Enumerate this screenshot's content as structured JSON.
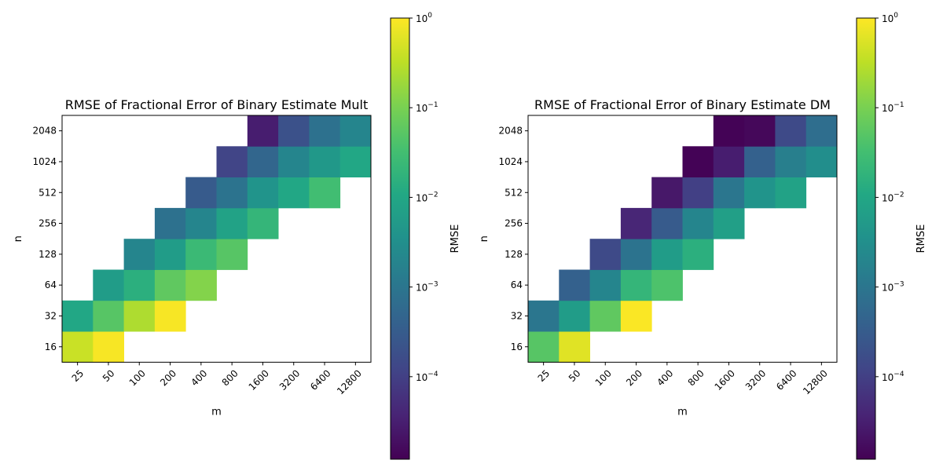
{
  "chart_data": [
    {
      "type": "heatmap",
      "title": "RMSE of Fractional Error of Binary Estimate Mult",
      "xlabel": "m",
      "ylabel": "n",
      "x_categories": [
        "25",
        "50",
        "100",
        "200",
        "400",
        "800",
        "1600",
        "3200",
        "6400",
        "12800"
      ],
      "y_categories": [
        "16",
        "32",
        "64",
        "128",
        "256",
        "512",
        "1024",
        "2048"
      ],
      "values": [
        [
          0.4,
          0.9,
          null,
          null,
          null,
          null,
          null,
          null,
          null,
          null
        ],
        [
          0.01,
          0.05,
          0.25,
          0.9,
          null,
          null,
          null,
          null,
          null,
          null
        ],
        [
          null,
          0.006,
          0.015,
          0.06,
          0.12,
          null,
          null,
          null,
          null,
          null
        ],
        [
          null,
          null,
          0.002,
          0.006,
          0.025,
          0.05,
          null,
          null,
          null,
          null
        ],
        [
          null,
          null,
          null,
          0.0008,
          0.002,
          0.008,
          0.02,
          null,
          null,
          null
        ],
        [
          null,
          null,
          null,
          null,
          0.0003,
          0.0009,
          0.004,
          0.01,
          0.03,
          null
        ],
        [
          null,
          null,
          null,
          null,
          null,
          0.00012,
          0.0005,
          0.002,
          0.005,
          0.01
        ],
        [
          null,
          null,
          null,
          null,
          null,
          null,
          3e-05,
          0.0002,
          0.0008,
          0.002
        ]
      ],
      "colorbar": {
        "label": "RMSE",
        "scale": "log",
        "range": [
          1.2e-05,
          1
        ],
        "ticks": [
          {
            "value": 1,
            "base": "10",
            "exp": "0"
          },
          {
            "value": 0.1,
            "base": "10",
            "exp": "−1"
          },
          {
            "value": 0.01,
            "base": "10",
            "exp": "−2"
          },
          {
            "value": 0.001,
            "base": "10",
            "exp": "−3"
          },
          {
            "value": 0.0001,
            "base": "10",
            "exp": "−4"
          }
        ],
        "colormap": "viridis"
      }
    },
    {
      "type": "heatmap",
      "title": "RMSE of Fractional Error of Binary Estimate DM",
      "xlabel": "m",
      "ylabel": "n",
      "x_categories": [
        "25",
        "50",
        "100",
        "200",
        "400",
        "800",
        "1600",
        "3200",
        "6400",
        "12800"
      ],
      "y_categories": [
        "16",
        "32",
        "64",
        "128",
        "256",
        "512",
        "1024",
        "2048"
      ],
      "values": [
        [
          0.05,
          0.6,
          null,
          null,
          null,
          null,
          null,
          null,
          null,
          null
        ],
        [
          0.001,
          0.006,
          0.06,
          0.95,
          null,
          null,
          null,
          null,
          null,
          null
        ],
        [
          null,
          0.0004,
          0.002,
          0.02,
          0.04,
          null,
          null,
          null,
          null,
          null
        ],
        [
          null,
          null,
          0.00015,
          0.0009,
          0.006,
          0.015,
          null,
          null,
          null,
          null
        ],
        [
          null,
          null,
          null,
          4e-05,
          0.0003,
          0.002,
          0.007,
          null,
          null,
          null
        ],
        [
          null,
          null,
          null,
          null,
          2.5e-05,
          0.0001,
          0.001,
          0.004,
          0.008,
          null
        ],
        [
          null,
          null,
          null,
          null,
          null,
          1.3e-05,
          3e-05,
          0.0004,
          0.0015,
          0.003
        ],
        [
          null,
          null,
          null,
          null,
          null,
          null,
          1.3e-05,
          1.5e-05,
          0.00015,
          0.0007
        ]
      ],
      "colorbar": {
        "label": "RMSE",
        "scale": "log",
        "range": [
          1.2e-05,
          1
        ],
        "ticks": [
          {
            "value": 1,
            "base": "10",
            "exp": "0"
          },
          {
            "value": 0.1,
            "base": "10",
            "exp": "−1"
          },
          {
            "value": 0.01,
            "base": "10",
            "exp": "−2"
          },
          {
            "value": 0.001,
            "base": "10",
            "exp": "−3"
          },
          {
            "value": 0.0001,
            "base": "10",
            "exp": "−4"
          }
        ],
        "colormap": "viridis"
      }
    }
  ]
}
